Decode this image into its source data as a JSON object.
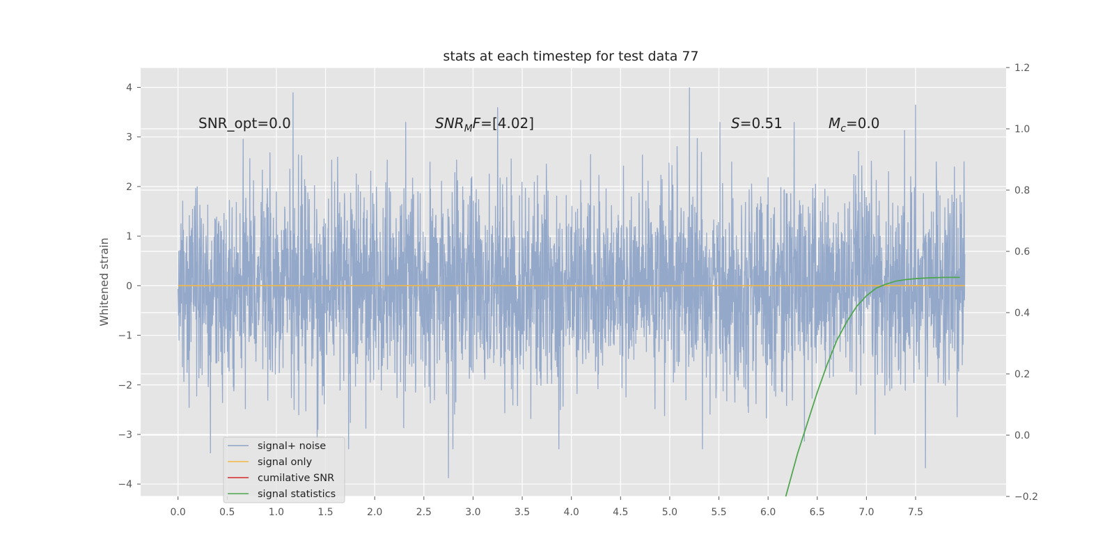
{
  "chart_data": {
    "type": "line",
    "title": "stats at each timestep for test data 77",
    "ylabel": "Whitened strain",
    "xlabel": "",
    "xlim": [
      -0.38,
      8.42
    ],
    "ylim": [
      -4.25,
      4.4
    ],
    "y2lim": [
      -0.2,
      1.2
    ],
    "xticks": [
      "0.0",
      "0.5",
      "1.0",
      "1.5",
      "2.0",
      "2.5",
      "3.0",
      "3.5",
      "4.0",
      "4.5",
      "5.0",
      "5.5",
      "6.0",
      "6.5",
      "7.0",
      "7.5"
    ],
    "yticks": [
      "4",
      "3",
      "2",
      "1",
      "0",
      "−1",
      "−2",
      "−3",
      "−4"
    ],
    "y2ticks": [
      "1.2",
      "1.0",
      "0.8",
      "0.6",
      "0.4",
      "0.2",
      "0.0",
      "−0.2"
    ],
    "grid": true,
    "legend_position": "lower-left",
    "annotations": {
      "snr_opt": "SNR_opt=0.0",
      "snr_mf": "[4.02]",
      "s_stat": "=0.51",
      "mc": "=0.0"
    },
    "series": [
      {
        "name": "signal+ noise",
        "axis": "left",
        "color": "#8fa4c8",
        "description_values": {
          "x_range": [
            0.0,
            8.0
          ],
          "typical_amplitude": 1.0,
          "max": 4.0,
          "min": -3.9,
          "notable_peaks": [
            [
              1.17,
              3.9
            ],
            [
              3.25,
              3.6
            ],
            [
              5.2,
              4.0
            ],
            [
              7.5,
              3.65
            ],
            [
              2.75,
              -3.88
            ],
            [
              7.6,
              -3.68
            ],
            [
              0.33,
              -3.38
            ]
          ]
        }
      },
      {
        "name": "signal only",
        "axis": "left",
        "color": "#f5b843",
        "x": [
          0.0,
          8.0
        ],
        "y": [
          0.0,
          0.0
        ]
      },
      {
        "name": "cumilative SNR",
        "axis": "right",
        "color": "#d62728",
        "x": [],
        "y": []
      },
      {
        "name": "signal statistics",
        "axis": "right",
        "color": "#4fa64f",
        "x": [
          6.18,
          6.3,
          6.4,
          6.5,
          6.6,
          6.7,
          6.8,
          6.9,
          7.0,
          7.1,
          7.2,
          7.3,
          7.4,
          7.5,
          7.6,
          7.7,
          7.8,
          7.95
        ],
        "y": [
          -0.2,
          -0.06,
          0.04,
          0.14,
          0.23,
          0.31,
          0.37,
          0.42,
          0.455,
          0.48,
          0.493,
          0.503,
          0.508,
          0.511,
          0.513,
          0.514,
          0.515,
          0.515
        ]
      }
    ]
  }
}
